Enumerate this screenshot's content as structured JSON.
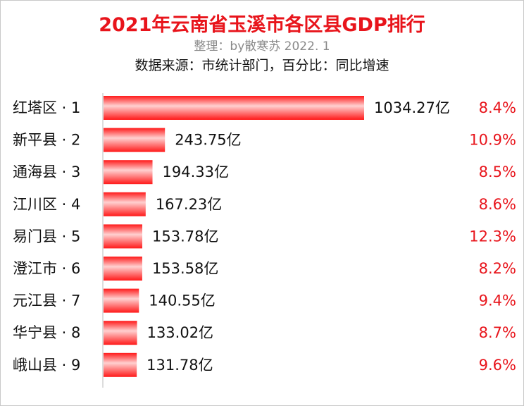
{
  "header": {
    "title": "2021年云南省玉溪市各区县GDP排行",
    "subtitle": "整理：by散寒苏  2022. 1",
    "source": "数据来源：市统计部门，百分比：同比增速"
  },
  "colors": {
    "bar": "#ff1a1a",
    "bar_highlight": "#ffd0d0",
    "title": "#e8141b",
    "growth": "#e8141b",
    "axis": "#bbbbbb"
  },
  "chart_data": {
    "type": "bar",
    "orientation": "horizontal",
    "categories": [
      "红塔区 · 1",
      "新平县 · 2",
      "通海县 · 3",
      "江川区 · 4",
      "易门县 · 5",
      "澄江市 · 6",
      "元江县 · 7",
      "华宁县 · 8",
      "峨山县 · 9"
    ],
    "series": [
      {
        "values": [
          1034.27,
          243.75,
          194.33,
          167.23,
          153.78,
          153.58,
          140.55,
          133.02,
          131.78
        ]
      }
    ],
    "value_labels": [
      "1034.27亿",
      "243.75亿",
      "194.33亿",
      "167.23亿",
      "153.78亿",
      "153.58亿",
      "140.55亿",
      "133.02亿",
      "131.78亿"
    ],
    "growth_labels": [
      "8.4%",
      "10.9%",
      "8.5%",
      "8.6%",
      "12.3%",
      "8.2%",
      "9.4%",
      "8.7%",
      "9.6%"
    ],
    "title": "2021年云南省玉溪市各区县GDP排行",
    "xlabel": "",
    "ylabel": "",
    "xlim": [
      0,
      1034.27
    ],
    "grid": false,
    "legend": "none"
  }
}
